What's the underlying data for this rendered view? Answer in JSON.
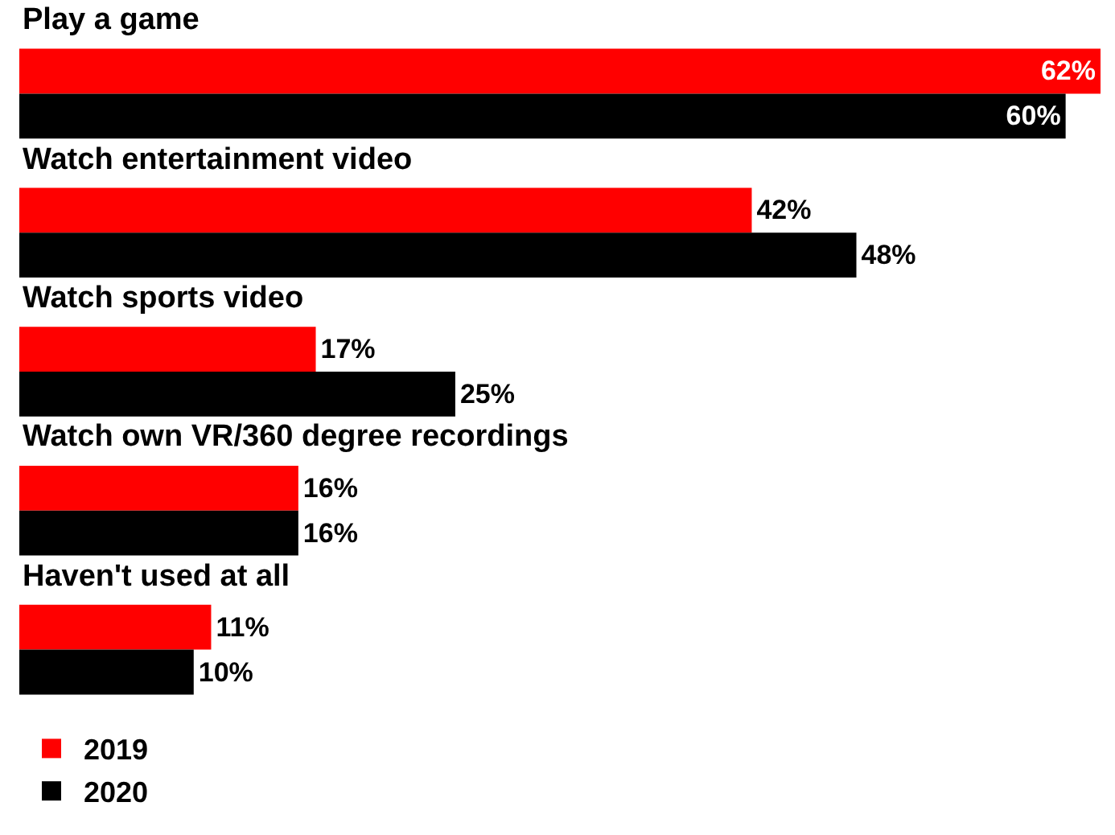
{
  "chart_data": {
    "type": "bar",
    "orientation": "horizontal",
    "categories": [
      "Play a game",
      "Watch entertainment video",
      "Watch sports video",
      "Watch own VR/360 degree recordings",
      "Haven't used at all"
    ],
    "series": [
      {
        "name": "2019",
        "color": "#ff0000",
        "values": [
          62,
          42,
          17,
          16,
          11
        ],
        "value_labels": [
          "62%",
          "42%",
          "17%",
          "16%",
          "11%"
        ]
      },
      {
        "name": "2020",
        "color": "#000000",
        "values": [
          60,
          48,
          25,
          16,
          10
        ],
        "value_labels": [
          "60%",
          "48%",
          "25%",
          "16%",
          "10%"
        ]
      }
    ],
    "data_labels": true,
    "legend": "bottom left",
    "tick_labels": false
  }
}
